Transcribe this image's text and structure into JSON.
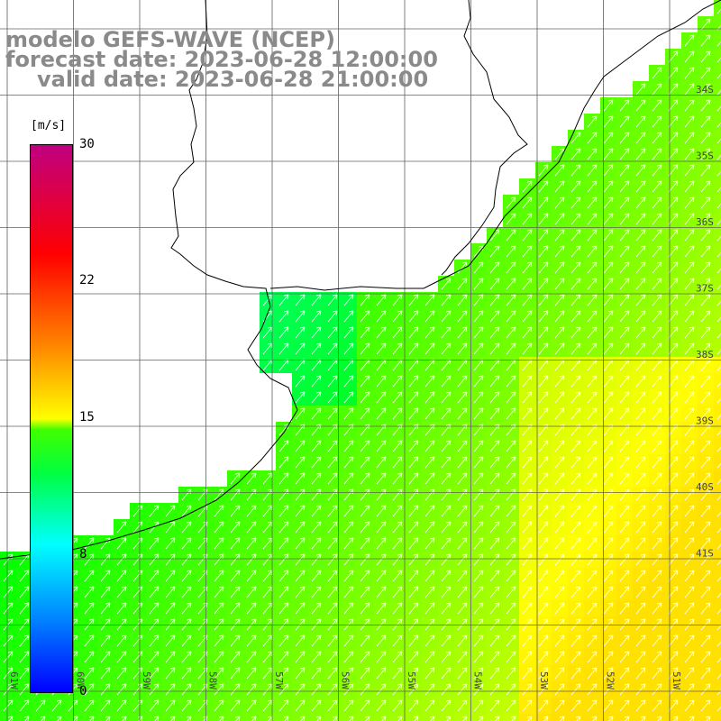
{
  "header": {
    "line1": "modelo GEFS-WAVE (NCEP)",
    "line2": "forecast date: 2023-06-28 12:00:00",
    "line3": "valid date: 2023-06-28 21:00:00"
  },
  "colorbar": {
    "unit": "[m/s]",
    "ticks": [
      "30",
      "22",
      "15",
      "8",
      "0"
    ],
    "colors": [
      "#0000ff",
      "#00ffff",
      "#00ff00",
      "#ffff00",
      "#ff0000",
      "#c00080"
    ]
  },
  "lat_labels": [
    "34S",
    "35S",
    "36S",
    "37S",
    "38S",
    "39S",
    "40S",
    "41S"
  ],
  "lon_labels": [
    "61W",
    "60W",
    "59W",
    "58W",
    "57W",
    "56W",
    "55W",
    "54W",
    "53W",
    "52W",
    "51W"
  ],
  "colors": {
    "land": "#ffffff",
    "coast": "#000000",
    "grid": "#606060",
    "arrow": "#ffffff",
    "title": "#8a8a8a"
  }
}
